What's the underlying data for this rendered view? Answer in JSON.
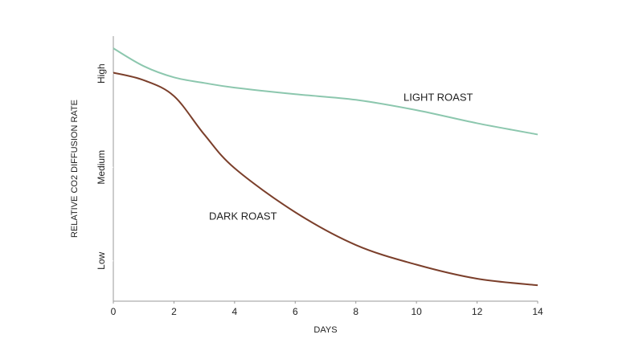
{
  "chart_data": {
    "type": "line",
    "xlabel": "DAYS",
    "ylabel": "RELATIVE CO2 DIFFUSION RATE",
    "x": [
      0,
      1,
      2,
      3,
      4,
      6,
      8,
      10,
      12,
      14
    ],
    "series": [
      {
        "name": "LIGHT ROAST",
        "color": "#8cc7ae",
        "values": [
          3.27,
          3.08,
          2.96,
          2.9,
          2.85,
          2.78,
          2.72,
          2.61,
          2.47,
          2.35
        ]
      },
      {
        "name": "DARK ROAST",
        "color": "#7b3f2b",
        "values": [
          3.01,
          2.93,
          2.76,
          2.35,
          1.99,
          1.52,
          1.17,
          0.96,
          0.81,
          0.74
        ]
      }
    ],
    "xlim": [
      0,
      14
    ],
    "xticks": [
      0,
      2,
      4,
      6,
      8,
      10,
      12,
      14
    ],
    "ylim": [
      0.57,
      3.4
    ],
    "yticks": [
      {
        "value": 1,
        "label": "Low"
      },
      {
        "value": 2,
        "label": "Medium"
      },
      {
        "value": 3,
        "label": "High"
      }
    ],
    "grid": false
  }
}
